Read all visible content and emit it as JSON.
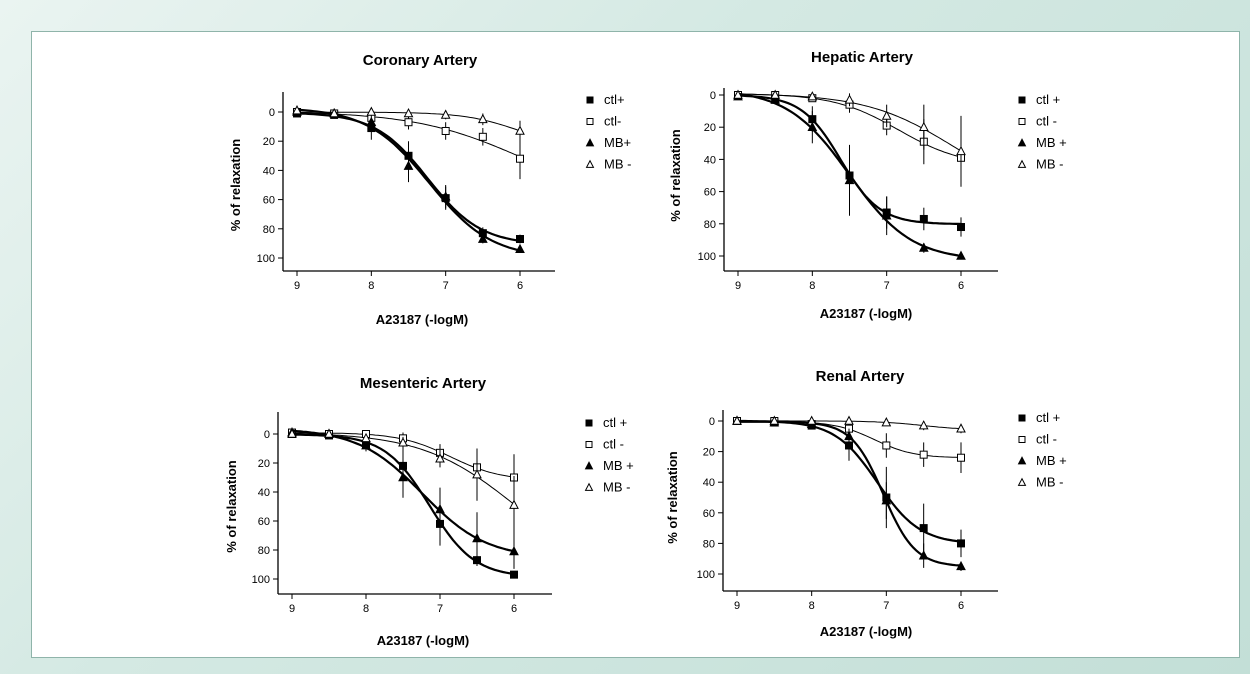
{
  "chart_data": [
    {
      "type": "line",
      "title": "Coronary Artery",
      "xlabel": "A23187 (-logM)",
      "ylabel": "% of relaxation",
      "x_axis": "reversed",
      "y_axis": "inverted",
      "xlim": [
        9,
        6
      ],
      "ylim": [
        0,
        100
      ],
      "x_ticks": [
        "9",
        "8",
        "7",
        "6"
      ],
      "y_ticks": [
        "0",
        "20",
        "40",
        "60",
        "80",
        "100"
      ],
      "x": [
        9,
        8.5,
        8,
        7.5,
        7,
        6.5,
        6
      ],
      "series": [
        {
          "name": "ctl+",
          "marker": "filled-square",
          "values": [
            1,
            2,
            11,
            30,
            59,
            83,
            87
          ],
          "err": [
            0,
            0,
            8,
            10,
            8,
            4,
            3
          ]
        },
        {
          "name": "ctl-",
          "marker": "open-square",
          "values": [
            0,
            1,
            4,
            7,
            13,
            17,
            32
          ],
          "err": [
            0,
            0,
            4,
            5,
            6,
            6,
            14
          ]
        },
        {
          "name": "MB+",
          "marker": "filled-triangle",
          "values": [
            0,
            1,
            7,
            37,
            58,
            87,
            94
          ],
          "err": [
            0,
            0,
            6,
            11,
            8,
            3,
            2
          ]
        },
        {
          "name": "MB -",
          "marker": "open-triangle",
          "values": [
            -1,
            1,
            0,
            1,
            2,
            5,
            13
          ],
          "err": [
            0,
            0,
            2,
            2,
            3,
            4,
            7
          ]
        }
      ]
    },
    {
      "type": "line",
      "title": "Hepatic Artery",
      "xlabel": "A23187 (-logM)",
      "ylabel": "% of relaxation",
      "x_axis": "reversed",
      "y_axis": "inverted",
      "xlim": [
        9,
        6
      ],
      "ylim": [
        0,
        100
      ],
      "x_ticks": [
        "9",
        "8",
        "7",
        "6"
      ],
      "y_ticks": [
        "0",
        "20",
        "40",
        "60",
        "80",
        "100"
      ],
      "x": [
        9,
        8.5,
        8,
        7.5,
        7,
        6.5,
        6
      ],
      "series": [
        {
          "name": "ctl +",
          "marker": "filled-square",
          "values": [
            0,
            3,
            15,
            50,
            73,
            77,
            82
          ],
          "err": [
            0,
            0,
            8,
            14,
            10,
            7,
            6
          ]
        },
        {
          "name": "ctl -",
          "marker": "open-square",
          "values": [
            0,
            0,
            2,
            6,
            19,
            29,
            39
          ],
          "err": [
            0,
            0,
            2,
            5,
            6,
            14,
            14
          ]
        },
        {
          "name": "MB +",
          "marker": "filled-triangle",
          "values": [
            1,
            3,
            20,
            53,
            75,
            95,
            100
          ],
          "err": [
            0,
            0,
            10,
            22,
            12,
            3,
            2
          ]
        },
        {
          "name": "MB -",
          "marker": "open-triangle",
          "values": [
            0,
            0,
            1,
            3,
            13,
            20,
            35
          ],
          "err": [
            0,
            0,
            2,
            4,
            7,
            14,
            22
          ]
        }
      ]
    },
    {
      "type": "line",
      "title": "Mesenteric Artery",
      "xlabel": "A23187 (-logM)",
      "ylabel": "% of relaxation",
      "x_axis": "reversed",
      "y_axis": "inverted",
      "xlim": [
        9,
        6
      ],
      "ylim": [
        0,
        100
      ],
      "x_ticks": [
        "9",
        "8",
        "7",
        "6"
      ],
      "y_ticks": [
        "0",
        "20",
        "40",
        "60",
        "80",
        "100"
      ],
      "x": [
        9,
        8.5,
        8,
        7.5,
        7,
        6.5,
        6
      ],
      "series": [
        {
          "name": "ctl +",
          "marker": "filled-square",
          "values": [
            0,
            1,
            7,
            22,
            62,
            87,
            97
          ],
          "err": [
            0,
            0,
            4,
            14,
            15,
            4,
            2
          ]
        },
        {
          "name": "ctl -",
          "marker": "open-square",
          "values": [
            -1,
            0,
            0,
            3,
            13,
            23,
            30
          ],
          "err": [
            0,
            0,
            2,
            4,
            6,
            8,
            16
          ]
        },
        {
          "name": "MB +",
          "marker": "filled-triangle",
          "values": [
            -1,
            0,
            8,
            30,
            52,
            72,
            81
          ],
          "err": [
            0,
            0,
            4,
            14,
            15,
            18,
            12
          ]
        },
        {
          "name": "MB -",
          "marker": "open-triangle",
          "values": [
            0,
            0,
            3,
            6,
            17,
            28,
            49
          ],
          "err": [
            0,
            0,
            2,
            4,
            6,
            18,
            20
          ]
        }
      ]
    },
    {
      "type": "line",
      "title": "Renal Artery",
      "xlabel": "A23187 (-logM)",
      "ylabel": "% of relaxation",
      "x_axis": "reversed",
      "y_axis": "inverted",
      "xlim": [
        9,
        6
      ],
      "ylim": [
        0,
        100
      ],
      "x_ticks": [
        "9",
        "8",
        "7",
        "6"
      ],
      "y_ticks": [
        "0",
        "20",
        "40",
        "60",
        "80",
        "100"
      ],
      "x": [
        9,
        8.5,
        8,
        7.5,
        7,
        6.5,
        6
      ],
      "series": [
        {
          "name": "ctl +",
          "marker": "filled-square",
          "values": [
            0,
            1,
            3,
            16,
            50,
            70,
            80
          ],
          "err": [
            0,
            0,
            2,
            10,
            20,
            16,
            9
          ]
        },
        {
          "name": "ctl -",
          "marker": "open-square",
          "values": [
            0,
            0,
            2,
            5,
            16,
            22,
            24
          ],
          "err": [
            0,
            0,
            2,
            4,
            8,
            8,
            10
          ]
        },
        {
          "name": "MB +",
          "marker": "filled-triangle",
          "values": [
            0,
            1,
            2,
            10,
            52,
            88,
            95
          ],
          "err": [
            0,
            0,
            2,
            5,
            12,
            8,
            3
          ]
        },
        {
          "name": "MB -",
          "marker": "open-triangle",
          "values": [
            0,
            0,
            0,
            0,
            1,
            3,
            5
          ],
          "err": [
            0,
            0,
            1,
            1,
            2,
            3,
            3
          ]
        }
      ]
    }
  ]
}
